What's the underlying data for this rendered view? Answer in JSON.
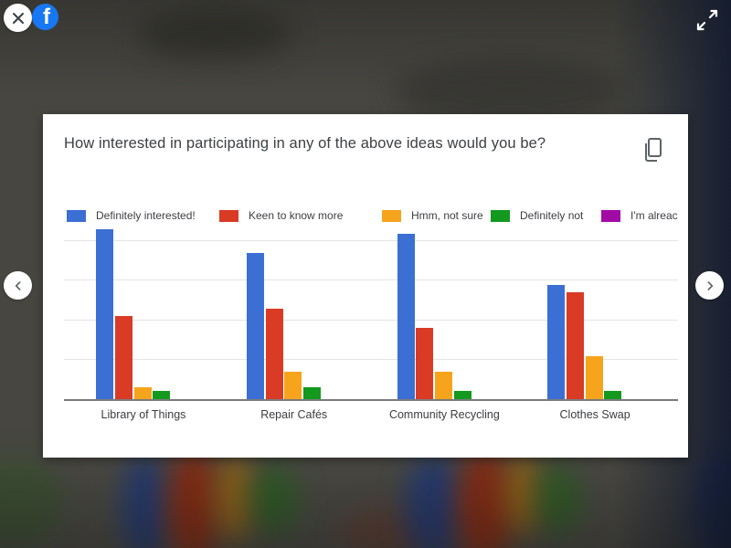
{
  "overlay": {
    "brand": "Facebook",
    "brand_color": "#1877F2",
    "icons": {
      "close": "close-x",
      "facebook": "f",
      "expand": "diagonal-expand-arrows",
      "prev": "chevron-left",
      "next": "chevron-right",
      "copy": "copy-pages"
    }
  },
  "card": {
    "title": "How interested in participating in any of the above ideas would you be?"
  },
  "chart_data": {
    "type": "bar",
    "title": "How interested in participating in any of the above ideas would you be?",
    "categories": [
      "Library of Things",
      "Repair Cafés",
      "Community Recycling",
      "Clothes Swap"
    ],
    "series": [
      {
        "name": "Definitely interested!",
        "color": "#3B6FD4",
        "values": [
          21.5,
          18.5,
          21,
          14.5
        ]
      },
      {
        "name": "Keen to know more",
        "color": "#D93B25",
        "values": [
          10.5,
          11.5,
          9,
          13.5
        ]
      },
      {
        "name": "Hmm, not sure",
        "color": "#F7A41D",
        "values": [
          1.5,
          3.5,
          3.5,
          5.5
        ]
      },
      {
        "name": "Definitely not",
        "color": "#12991E",
        "values": [
          1,
          1.5,
          1,
          1
        ]
      },
      {
        "name": "I'm alreac",
        "color": "#A10BA5",
        "values": [
          0,
          0,
          0,
          0
        ]
      }
    ],
    "ylim": [
      0,
      22
    ],
    "gridline_interval": 5,
    "grid": true,
    "y_axis_labels_visible": false,
    "legend_position": "top",
    "xlabel": "",
    "ylabel": ""
  }
}
